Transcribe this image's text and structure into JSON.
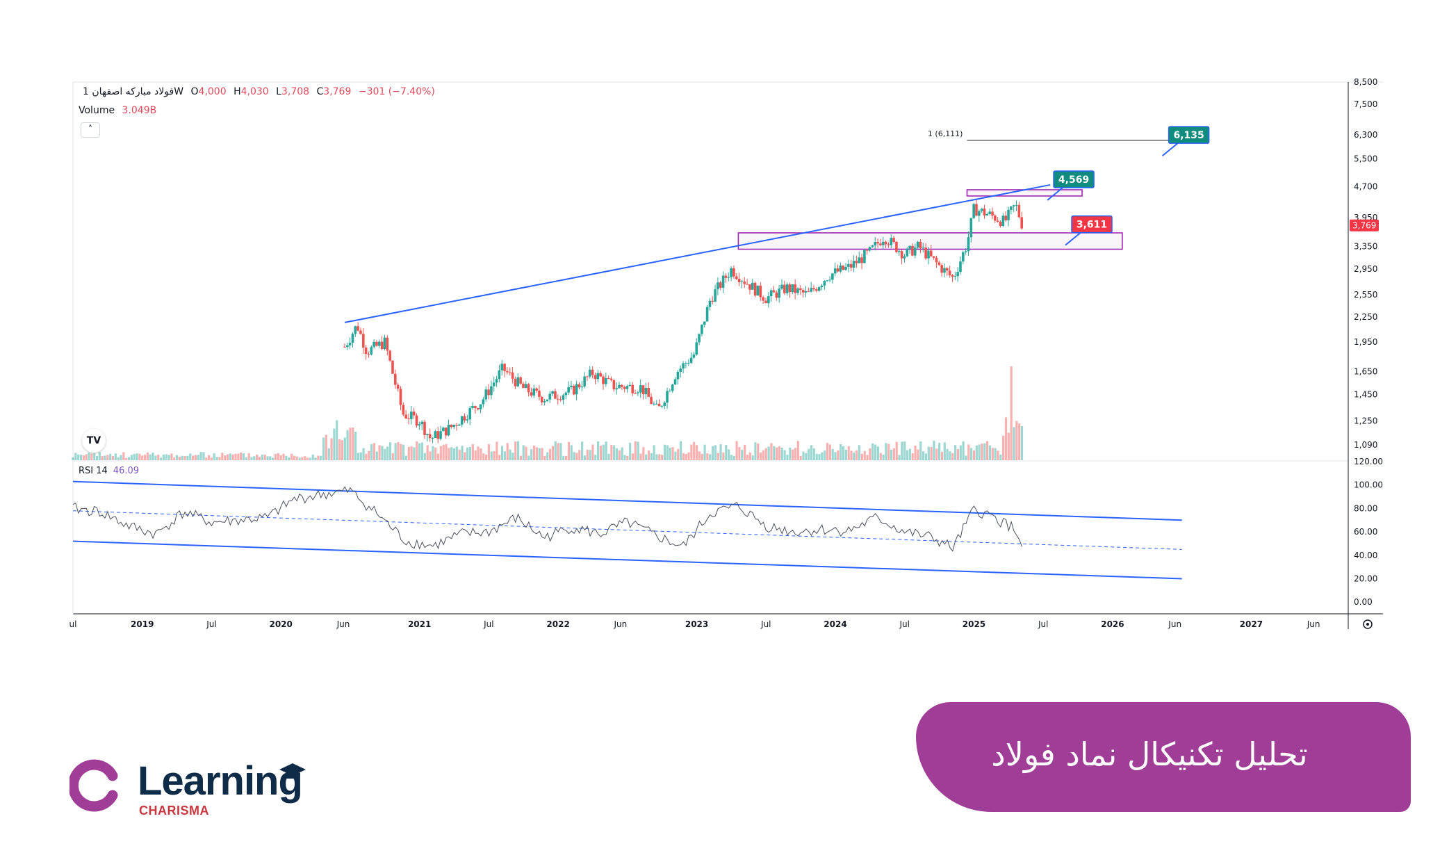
{
  "header": {
    "symbol": "فولاد مبارکه اصفهان",
    "interval": "1W",
    "open_label": "O",
    "open_value": "4,000",
    "high_label": "H",
    "high_value": "4,030",
    "low_label": "L",
    "low_value": "3,708",
    "close_label": "C",
    "close_value": "3,769",
    "change": "−301 (−7.40%)",
    "volume_label": "Volume",
    "volume_value": "3.049B",
    "collapse_icon": "˄",
    "tv_logo": "TV"
  },
  "rsi_legend": {
    "label": "RSI 14",
    "value": "46.09"
  },
  "chart_data": [
    {
      "type": "candlestick",
      "title": "",
      "x_axis": {
        "labels": [
          "ul",
          "2019",
          "Jul",
          "2020",
          "Jun",
          "2021",
          "Jul",
          "2022",
          "Jun",
          "2023",
          "Jul",
          "2024",
          "Jul",
          "2025",
          "Jul",
          "2026",
          "Jun",
          "2027",
          "Jun"
        ],
        "label_dates": [
          2018.5,
          2019.0,
          2019.5,
          2020.0,
          2020.45,
          2021.0,
          2021.5,
          2022.0,
          2022.45,
          2023.0,
          2023.5,
          2024.0,
          2024.5,
          2025.0,
          2025.5,
          2026.0,
          2026.45,
          2027.0,
          2027.45
        ],
        "range": [
          2018.5,
          2027.7
        ]
      },
      "y_axis": {
        "scale": "log",
        "range": [
          1000,
          8500
        ],
        "ticks": [
          8500,
          7500,
          6300,
          5500,
          4700,
          3950,
          3350,
          2950,
          2550,
          2250,
          1950,
          1650,
          1450,
          1250,
          1090
        ],
        "tick_labels": [
          "8,500",
          "7,500",
          "6,300",
          "5,500",
          "4,700",
          "3,950",
          "3,350",
          "2,950",
          "2,550",
          "2,250",
          "1,950",
          "1,650",
          "1,450",
          "1,250",
          "1,090"
        ]
      },
      "last_price": {
        "value": 3769,
        "label": "3,769",
        "color": "#f23645"
      },
      "price_anchors": [
        {
          "t": 2020.46,
          "p": 1900
        },
        {
          "t": 2020.55,
          "p": 2150
        },
        {
          "t": 2020.62,
          "p": 1850
        },
        {
          "t": 2020.75,
          "p": 1950
        },
        {
          "t": 2020.88,
          "p": 1300
        },
        {
          "t": 2021.0,
          "p": 1250
        },
        {
          "t": 2021.08,
          "p": 1130
        },
        {
          "t": 2021.22,
          "p": 1200
        },
        {
          "t": 2021.45,
          "p": 1400
        },
        {
          "t": 2021.6,
          "p": 1680
        },
        {
          "t": 2021.75,
          "p": 1500
        },
        {
          "t": 2021.9,
          "p": 1420
        },
        {
          "t": 2022.1,
          "p": 1480
        },
        {
          "t": 2022.25,
          "p": 1640
        },
        {
          "t": 2022.4,
          "p": 1520
        },
        {
          "t": 2022.6,
          "p": 1510
        },
        {
          "t": 2022.72,
          "p": 1320
        },
        {
          "t": 2022.85,
          "p": 1640
        },
        {
          "t": 2022.98,
          "p": 1820
        },
        {
          "t": 2023.1,
          "p": 2500
        },
        {
          "t": 2023.25,
          "p": 2950
        },
        {
          "t": 2023.35,
          "p": 2750
        },
        {
          "t": 2023.5,
          "p": 2500
        },
        {
          "t": 2023.65,
          "p": 2650
        },
        {
          "t": 2023.8,
          "p": 2550
        },
        {
          "t": 2023.95,
          "p": 2850
        },
        {
          "t": 2024.1,
          "p": 2980
        },
        {
          "t": 2024.25,
          "p": 3250
        },
        {
          "t": 2024.35,
          "p": 3550
        },
        {
          "t": 2024.5,
          "p": 3200
        },
        {
          "t": 2024.6,
          "p": 3350
        },
        {
          "t": 2024.75,
          "p": 3000
        },
        {
          "t": 2024.85,
          "p": 2800
        },
        {
          "t": 2024.95,
          "p": 3400
        },
        {
          "t": 2025.0,
          "p": 4150
        },
        {
          "t": 2025.12,
          "p": 4000
        },
        {
          "t": 2025.22,
          "p": 3850
        },
        {
          "t": 2025.3,
          "p": 4250
        },
        {
          "t": 2025.35,
          "p": 3769
        }
      ],
      "volume": {
        "last_value": "3.049B",
        "spike_date": 2025.27
      },
      "annotations": [
        {
          "type": "trendline",
          "from": {
            "t": 2020.46,
            "p": 2180
          },
          "to": {
            "t": 2025.55,
            "p": 4750
          },
          "color": "#2962ff"
        },
        {
          "type": "target_line",
          "label": "1 (6,111)",
          "from_t": 2024.95,
          "to_t": 2026.55,
          "p": 6111
        },
        {
          "type": "callout",
          "label": "6,135",
          "t": 2026.55,
          "p": 6300,
          "color": "#0f8c7e"
        },
        {
          "type": "callout",
          "label": "4,569",
          "t": 2025.72,
          "p": 4900,
          "color": "#0f8c7e"
        },
        {
          "type": "callout",
          "label": "3,611",
          "t": 2025.85,
          "p": 3800,
          "color": "#f23645"
        },
        {
          "type": "zone",
          "t1": 2024.95,
          "t2": 2025.78,
          "p1": 4460,
          "p2": 4620,
          "color": "#9c27b0"
        },
        {
          "type": "zone",
          "t1": 2023.3,
          "t2": 2026.07,
          "p1": 3300,
          "p2": 3620,
          "color": "#9c27b0"
        }
      ]
    },
    {
      "type": "line",
      "title": "RSI 14",
      "y_axis": {
        "range": [
          -10,
          120
        ],
        "ticks": [
          120,
          100,
          80,
          60,
          40,
          20,
          0
        ],
        "tick_labels": [
          "120.00",
          "100.00",
          "80.00",
          "60.00",
          "40.00",
          "20.00",
          "0.00"
        ]
      },
      "series": [
        {
          "name": "RSI 14",
          "x": [
            2018.5,
            2018.7,
            2018.9,
            2019.1,
            2019.3,
            2019.5,
            2019.7,
            2019.9,
            2020.1,
            2020.3,
            2020.5,
            2020.7,
            2020.9,
            2021.1,
            2021.3,
            2021.5,
            2021.7,
            2021.9,
            2022.1,
            2022.3,
            2022.5,
            2022.7,
            2022.9,
            2023.1,
            2023.3,
            2023.5,
            2023.7,
            2023.9,
            2024.1,
            2024.3,
            2024.5,
            2024.7,
            2024.85,
            2025.0,
            2025.15,
            2025.3,
            2025.35
          ],
          "values": [
            80,
            77,
            65,
            58,
            77,
            68,
            70,
            72,
            88,
            92,
            95,
            75,
            52,
            48,
            58,
            60,
            72,
            55,
            64,
            58,
            68,
            57,
            47,
            76,
            82,
            65,
            60,
            62,
            61,
            72,
            60,
            55,
            46,
            79,
            72,
            62,
            46.09
          ]
        }
      ],
      "channel": {
        "upper": {
          "from": {
            "t": 2018.5,
            "v": 103
          },
          "to": {
            "t": 2026.5,
            "v": 70
          }
        },
        "lower": {
          "from": {
            "t": 2018.5,
            "v": 52
          },
          "to": {
            "t": 2026.5,
            "v": 20
          }
        },
        "middle": {
          "from": {
            "t": 2018.5,
            "v": 78
          },
          "to": {
            "t": 2026.5,
            "v": 45
          }
        }
      }
    }
  ],
  "title_banner": {
    "text": "تحلیل تکنیکال نماد فولاد",
    "color": "#a03d96"
  },
  "brand": {
    "word": "Learning",
    "sub": "CHARISMA",
    "word_color": "#0e2b47",
    "sub_color": "#c8363f",
    "ring_color": "#a03d96"
  }
}
